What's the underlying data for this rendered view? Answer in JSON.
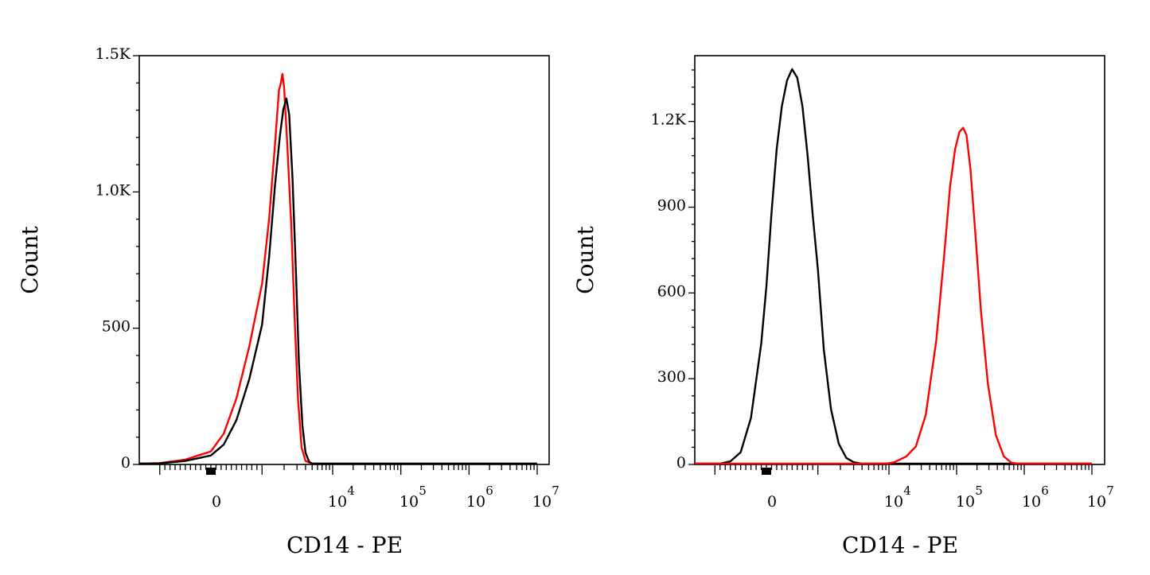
{
  "chart_data": [
    {
      "type": "line",
      "xlabel": "CD14 - PE",
      "ylabel": "Count",
      "x_scale": "biexponential",
      "x_tick_labels": [
        "0",
        "10",
        "10",
        "10",
        "10"
      ],
      "x_tick_exponents": [
        "",
        "4",
        "5",
        "6",
        "7"
      ],
      "y_tick_labels": [
        "0",
        "500",
        "1.0K",
        "1.5K"
      ],
      "y_tick_values": [
        0,
        500,
        1000,
        1500
      ],
      "ylim": [
        0,
        1500
      ],
      "grid": false,
      "series": [
        {
          "color": "#ff0000",
          "peak_x": 1900,
          "peak_count": 1430,
          "points": [
            [
              -2000,
              0
            ],
            [
              -1000,
              2
            ],
            [
              -500,
              15
            ],
            [
              0,
              45
            ],
            [
              250,
              110
            ],
            [
              500,
              240
            ],
            [
              750,
              430
            ],
            [
              1000,
              660
            ],
            [
              1250,
              900
            ],
            [
              1500,
              1170
            ],
            [
              1700,
              1370
            ],
            [
              1800,
              1395
            ],
            [
              1900,
              1430
            ],
            [
              2000,
              1380
            ],
            [
              2200,
              1180
            ],
            [
              2500,
              880
            ],
            [
              2800,
              520
            ],
            [
              3100,
              240
            ],
            [
              3500,
              60
            ],
            [
              4000,
              10
            ],
            [
              5000,
              0
            ],
            [
              10000,
              0
            ],
            [
              10000000,
              0
            ]
          ]
        },
        {
          "color": "#000000",
          "peak_x": 2150,
          "peak_count": 1340,
          "points": [
            [
              -2000,
              0
            ],
            [
              -1000,
              1
            ],
            [
              -500,
              10
            ],
            [
              0,
              30
            ],
            [
              250,
              70
            ],
            [
              500,
              160
            ],
            [
              750,
              310
            ],
            [
              1000,
              510
            ],
            [
              1250,
              760
            ],
            [
              1500,
              1020
            ],
            [
              1750,
              1200
            ],
            [
              1950,
              1300
            ],
            [
              2150,
              1340
            ],
            [
              2350,
              1280
            ],
            [
              2600,
              1050
            ],
            [
              2900,
              700
            ],
            [
              3200,
              370
            ],
            [
              3600,
              140
            ],
            [
              4000,
              40
            ],
            [
              4500,
              8
            ],
            [
              5000,
              0
            ],
            [
              10000,
              0
            ],
            [
              10000000,
              0
            ]
          ]
        }
      ]
    },
    {
      "type": "line",
      "xlabel": "CD14 - PE",
      "ylabel": "Count",
      "x_scale": "biexponential",
      "x_tick_labels": [
        "0",
        "10",
        "10",
        "10",
        "10"
      ],
      "x_tick_exponents": [
        "",
        "4",
        "5",
        "6",
        "7"
      ],
      "y_tick_labels": [
        "0",
        "300",
        "600",
        "900",
        "1.2K"
      ],
      "y_tick_values": [
        0,
        300,
        600,
        900,
        1200
      ],
      "ylim": [
        0,
        1430
      ],
      "grid": false,
      "series": [
        {
          "color": "#000000",
          "peak_x": 500,
          "peak_count": 1380,
          "points": [
            [
              -2000,
              0
            ],
            [
              -900,
              0
            ],
            [
              -700,
              8
            ],
            [
              -500,
              40
            ],
            [
              -300,
              160
            ],
            [
              -100,
              420
            ],
            [
              0,
              620
            ],
            [
              100,
              880
            ],
            [
              200,
              1100
            ],
            [
              300,
              1250
            ],
            [
              400,
              1340
            ],
            [
              500,
              1380
            ],
            [
              600,
              1350
            ],
            [
              700,
              1250
            ],
            [
              800,
              1080
            ],
            [
              900,
              870
            ],
            [
              1000,
              680
            ],
            [
              1200,
              400
            ],
            [
              1500,
              190
            ],
            [
              1900,
              70
            ],
            [
              2400,
              20
            ],
            [
              3000,
              5
            ],
            [
              4000,
              0
            ],
            [
              10000000,
              0
            ]
          ]
        },
        {
          "color": "#ff0000",
          "peak_x": 125000,
          "peak_count": 1175,
          "points": [
            [
              -2000,
              0
            ],
            [
              9000,
              0
            ],
            [
              12000,
              5
            ],
            [
              18000,
              25
            ],
            [
              25000,
              60
            ],
            [
              35000,
              170
            ],
            [
              50000,
              430
            ],
            [
              65000,
              720
            ],
            [
              80000,
              970
            ],
            [
              95000,
              1100
            ],
            [
              110000,
              1160
            ],
            [
              125000,
              1175
            ],
            [
              140000,
              1150
            ],
            [
              160000,
              1030
            ],
            [
              190000,
              800
            ],
            [
              230000,
              530
            ],
            [
              290000,
              280
            ],
            [
              380000,
              100
            ],
            [
              500000,
              25
            ],
            [
              650000,
              3
            ],
            [
              800000,
              0
            ],
            [
              10000000,
              0
            ]
          ]
        }
      ]
    }
  ]
}
